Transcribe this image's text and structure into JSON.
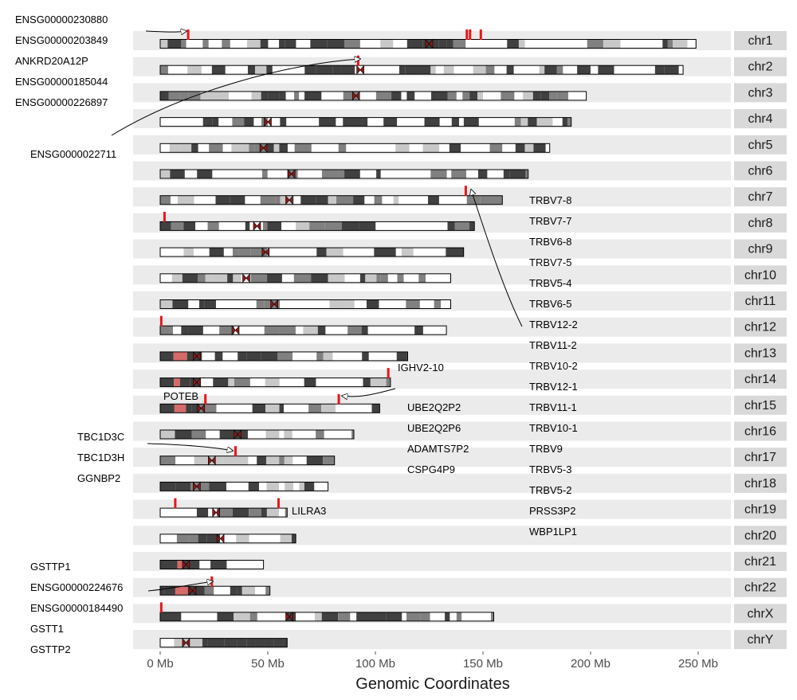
{
  "chromosomes": [
    {
      "name": "chr1",
      "length": 249,
      "centromere": 125
    },
    {
      "name": "chr2",
      "length": 243,
      "centromere": 93
    },
    {
      "name": "chr3",
      "length": 198,
      "centromere": 91
    },
    {
      "name": "chr4",
      "length": 191,
      "centromere": 50
    },
    {
      "name": "chr5",
      "length": 181,
      "centromere": 48
    },
    {
      "name": "chr6",
      "length": 171,
      "centromere": 61
    },
    {
      "name": "chr7",
      "length": 159,
      "centromere": 60
    },
    {
      "name": "chr8",
      "length": 146,
      "centromere": 45
    },
    {
      "name": "chr9",
      "length": 141,
      "centromere": 49
    },
    {
      "name": "chr10",
      "length": 135,
      "centromere": 40
    },
    {
      "name": "chr11",
      "length": 135,
      "centromere": 53
    },
    {
      "name": "chr12",
      "length": 133,
      "centromere": 35
    },
    {
      "name": "chr13",
      "length": 115,
      "centromere": 17
    },
    {
      "name": "chr14",
      "length": 107,
      "centromere": 17
    },
    {
      "name": "chr15",
      "length": 102,
      "centromere": 19
    },
    {
      "name": "chr16",
      "length": 90,
      "centromere": 36
    },
    {
      "name": "chr17",
      "length": 81,
      "centromere": 24
    },
    {
      "name": "chr18",
      "length": 78,
      "centromere": 17
    },
    {
      "name": "chr19",
      "length": 59,
      "centromere": 26
    },
    {
      "name": "chr20",
      "length": 63,
      "centromere": 28
    },
    {
      "name": "chr21",
      "length": 48,
      "centromere": 12
    },
    {
      "name": "chr22",
      "length": 51,
      "centromere": 15
    },
    {
      "name": "chrX",
      "length": 155,
      "centromere": 60
    },
    {
      "name": "chrY",
      "length": 59,
      "centromere": 12
    }
  ],
  "axis": {
    "title": "Genomic Coordinates",
    "ticks": [
      {
        "value": 0,
        "label": "0 Mb"
      },
      {
        "value": 50,
        "label": "50 Mb"
      },
      {
        "value": 100,
        "label": "100 Mb"
      },
      {
        "value": 150,
        "label": "150 Mb"
      },
      {
        "value": 200,
        "label": "200 Mb"
      },
      {
        "value": 250,
        "label": "250 Mb"
      }
    ]
  },
  "markers": [
    {
      "chr": "chr1",
      "pos": 13
    },
    {
      "chr": "chr1",
      "pos": 142.5
    },
    {
      "chr": "chr1",
      "pos": 144
    },
    {
      "chr": "chr1",
      "pos": 149
    },
    {
      "chr": "chr2",
      "pos": 92
    },
    {
      "chr": "chr7",
      "pos": 142
    },
    {
      "chr": "chr8",
      "pos": 2
    },
    {
      "chr": "chr12",
      "pos": 0.5
    },
    {
      "chr": "chr14",
      "pos": 106
    },
    {
      "chr": "chr15",
      "pos": 21
    },
    {
      "chr": "chr15",
      "pos": 83
    },
    {
      "chr": "chr17",
      "pos": 35
    },
    {
      "chr": "chr19",
      "pos": 7
    },
    {
      "chr": "chr19",
      "pos": 55
    },
    {
      "chr": "chr22",
      "pos": 24
    },
    {
      "chr": "chrX",
      "pos": 0.5
    }
  ],
  "label_groups": {
    "chr1_left": [
      "ENSG00000230880",
      "ENSG00000203849",
      "ANKRD20A12P",
      "ENSG00000185044",
      "ENSG00000226897",
      "ENSG0000022711"
    ],
    "chr7_trbv": [
      "TRBV7-8",
      "TRBV7-7",
      "TRBV6-8",
      "TRBV7-5",
      "TRBV5-4",
      "TRBV6-5",
      "TRBV12-2",
      "TRBV11-2",
      "TRBV10-2",
      "TRBV12-1",
      "TRBV11-1",
      "TRBV10-1",
      "TRBV9",
      "TRBV5-3",
      "TRBV5-2",
      "PRSS3P2",
      "WBP1LP1"
    ],
    "chr14": [
      "IGHV2-10"
    ],
    "chr15_left": [
      "POTEB"
    ],
    "chr15_right": [
      "UBE2Q2P2",
      "UBE2Q2P6",
      "ADAMTS7P2",
      "CSPG4P9"
    ],
    "chr17": [
      "TBC1D3C",
      "TBC1D3H",
      "GGNBP2"
    ],
    "chr19": [
      "LILRA3"
    ],
    "chr22": [
      "GSTTP1",
      "ENSG00000224676",
      "ENSG00000184490",
      "GSTT1",
      "GSTTP2"
    ]
  },
  "colors": {
    "band_dark": "#404040",
    "band_mid": "#808080",
    "band_light": "#c8c8c8",
    "band_white": "#ffffff",
    "centromere": "#8b1a1a",
    "stalk": "#d46a6a",
    "marker": "#e8161b",
    "row_bg": "#ebebeb",
    "strip_bg": "#d9d9d9"
  }
}
